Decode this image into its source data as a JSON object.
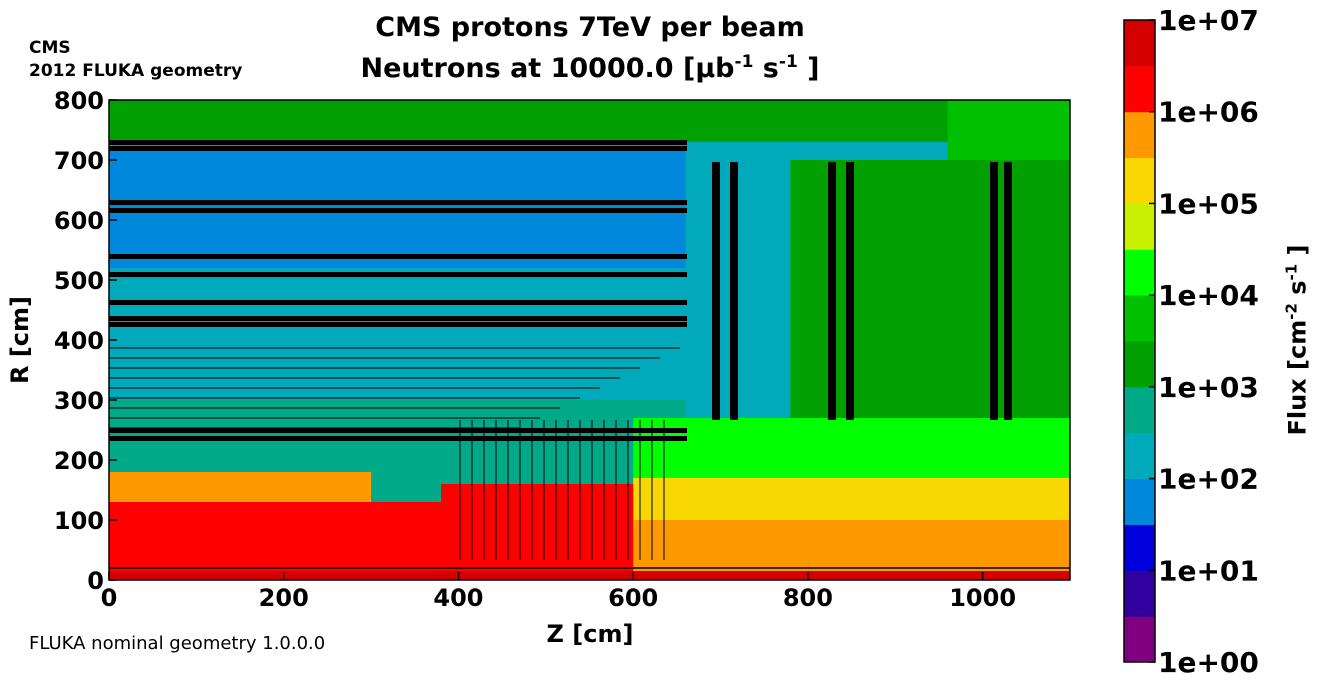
{
  "header": {
    "experiment": "CMS",
    "geometry_note": "2012 FLUKA geometry",
    "title_line1": "CMS protons 7TeV per beam",
    "title_line2_prefix": "Neutrons at 10000.0 [",
    "title_line2_unit": "μb",
    "title_line2_exp1": "-1",
    "title_line2_mid": " s",
    "title_line2_exp2": "-1",
    "title_line2_suffix": " ]"
  },
  "footer": {
    "version": "FLUKA nominal geometry 1.0.0.0"
  },
  "colorbar": {
    "label_prefix": "Flux [cm",
    "label_exp1": "-2",
    "label_mid": " s",
    "label_exp2": "-1",
    "label_suffix": " ]",
    "tick_labels": [
      "1e+00",
      "1e+01",
      "1e+02",
      "1e+03",
      "1e+04",
      "1e+05",
      "1e+06",
      "1e+07"
    ],
    "colors": [
      "#800080",
      "#3300a0",
      "#0000dd",
      "#0088dd",
      "#00aabb",
      "#00aa88",
      "#00a000",
      "#00c000",
      "#00ff00",
      "#c8f000",
      "#f8d800",
      "#ff9900",
      "#ff0000",
      "#d40000"
    ]
  },
  "chart_data": {
    "type": "heatmap",
    "title": "CMS protons 7TeV per beam — Neutrons at 10000.0 [μb⁻¹ s⁻¹]",
    "xlabel": "Z [cm]",
    "ylabel": "R [cm]",
    "xlim": [
      0,
      1100
    ],
    "ylim": [
      0,
      800
    ],
    "xticks": [
      0,
      200,
      400,
      600,
      800,
      1000
    ],
    "yticks": [
      0,
      100,
      200,
      300,
      400,
      500,
      600,
      700,
      800
    ],
    "colorbar_range": [
      1,
      10000000
    ],
    "colorbar_scale": "log",
    "regions": [
      {
        "name": "outer-cavern",
        "z": [
          0,
          1100
        ],
        "r": [
          730,
          800
        ],
        "level": 6
      },
      {
        "name": "outer-right",
        "z": [
          960,
          1100
        ],
        "r": [
          400,
          800
        ],
        "level": 7
      },
      {
        "name": "return-yoke",
        "z": [
          0,
          660
        ],
        "r": [
          300,
          730
        ],
        "level": 4
      },
      {
        "name": "sparse-yoke-upper",
        "z": [
          0,
          660
        ],
        "r": [
          520,
          720
        ],
        "level": 3
      },
      {
        "name": "endcap-yoke",
        "z": [
          660,
          960
        ],
        "r": [
          270,
          730
        ],
        "level": 4
      },
      {
        "name": "forward-upper",
        "z": [
          780,
          1100
        ],
        "r": [
          200,
          700
        ],
        "level": 6
      },
      {
        "name": "forward-mid",
        "z": [
          600,
          1100
        ],
        "r": [
          130,
          270
        ],
        "level": 8
      },
      {
        "name": "forward-lower",
        "z": [
          600,
          1100
        ],
        "r": [
          80,
          170
        ],
        "level": 10
      },
      {
        "name": "calorimeter-boundary",
        "z": [
          0,
          300
        ],
        "r": [
          150,
          300
        ],
        "level": 5
      },
      {
        "name": "ecal-hcal-outer",
        "z": [
          0,
          300
        ],
        "r": [
          120,
          180
        ],
        "level": 11
      },
      {
        "name": "inner-detector",
        "z": [
          0,
          380
        ],
        "r": [
          0,
          130
        ],
        "level": 12
      },
      {
        "name": "endcap-hot",
        "z": [
          380,
          600
        ],
        "r": [
          0,
          160
        ],
        "level": 12
      },
      {
        "name": "forward-beamline",
        "z": [
          600,
          1100
        ],
        "r": [
          0,
          100
        ],
        "level": 11
      },
      {
        "name": "beampipe",
        "z": [
          0,
          1100
        ],
        "r": [
          0,
          15
        ],
        "level": 13
      }
    ]
  }
}
